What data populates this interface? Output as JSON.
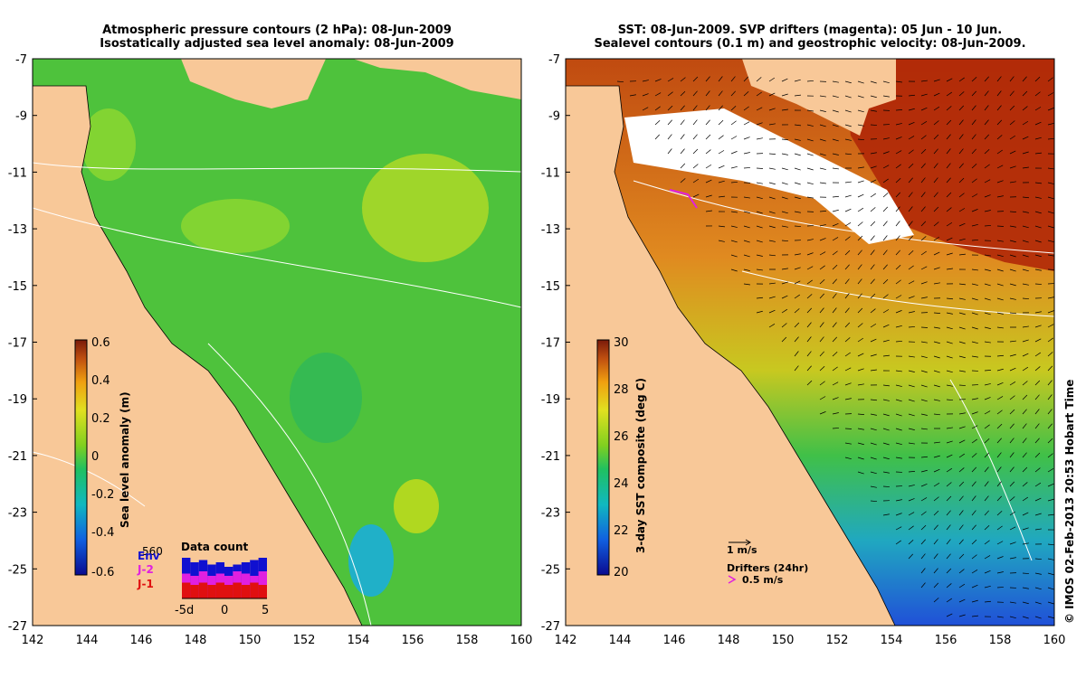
{
  "left_panel": {
    "title_line1": "Atmospheric pressure contours (2 hPa): 08-Jun-2009",
    "title_line2": "Isostatically adjusted sea level anomaly: 08-Jun-2009",
    "colorbar_label": "Sea level anomaly (m)",
    "colorbar_ticks": [
      "0.6",
      "0.4",
      "0.2",
      "0",
      "-0.2",
      "-0.4",
      "-0.6"
    ],
    "inset": {
      "title": "Data count",
      "max_label": "560",
      "legend": [
        {
          "label": "Env",
          "color": "#1010d0"
        },
        {
          "label": "J-2",
          "color": "#e020e0"
        },
        {
          "label": "J-1",
          "color": "#e01010"
        }
      ],
      "x_ticks": [
        "-5d",
        "0",
        "5"
      ]
    }
  },
  "right_panel": {
    "title_line1": "SST: 08-Jun-2009. SVP drifters (magenta): 05 Jun - 10 Jun.",
    "title_line2": "Sealevel contours (0.1 m) and geostrophic velocity: 08-Jun-2009.",
    "colorbar_label": "3-day SST composite (deg C)",
    "colorbar_ticks": [
      "30",
      "28",
      "26",
      "24",
      "22",
      "20"
    ],
    "velocity_scale_label": "1 m/s",
    "drifters_label": "Drifters (24hr)",
    "drifters_speed_label": "0.5 m/s"
  },
  "axes": {
    "y_ticks": [
      "-7",
      "-9",
      "-11",
      "-13",
      "-15",
      "-17",
      "-19",
      "-21",
      "-23",
      "-25",
      "-27"
    ],
    "x_ticks": [
      "142",
      "144",
      "146",
      "148",
      "150",
      "152",
      "154",
      "156",
      "158",
      "160"
    ]
  },
  "credit": "© IMOS 02-Feb-2013 20:53 Hobart Time",
  "colors": {
    "land": "#f8c898",
    "sla_sea": "#4ec23c",
    "sst_warm": "#d06010",
    "sst_hot": "#b02808",
    "sst_cool": "#38c048",
    "sst_cold": "#2a60d8",
    "cloud": "#ffffff"
  }
}
